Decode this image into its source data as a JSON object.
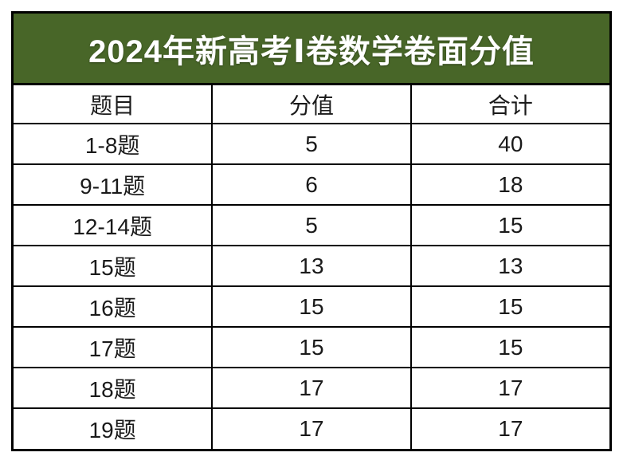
{
  "page": {
    "background_color": "#ffffff"
  },
  "banner": {
    "title": "2024年新高考Ⅰ卷数学卷面分值",
    "bg_color": "#486628",
    "text_color": "#ffffff"
  },
  "table_style": {
    "border_color": "#000000",
    "cell_bg": "#ffffff",
    "cell_text_color": "#1a1a1a"
  },
  "chart_data": {
    "type": "table",
    "title": "2024年新高考Ⅰ卷数学卷面分值",
    "columns": [
      "题目",
      "分值",
      "合计"
    ],
    "rows": [
      [
        "1-8题",
        "5",
        "40"
      ],
      [
        "9-11题",
        "6",
        "18"
      ],
      [
        "12-14题",
        "5",
        "15"
      ],
      [
        "15题",
        "13",
        "13"
      ],
      [
        "16题",
        "15",
        "15"
      ],
      [
        "17题",
        "15",
        "15"
      ],
      [
        "18题",
        "17",
        "17"
      ],
      [
        "19题",
        "17",
        "17"
      ]
    ]
  }
}
